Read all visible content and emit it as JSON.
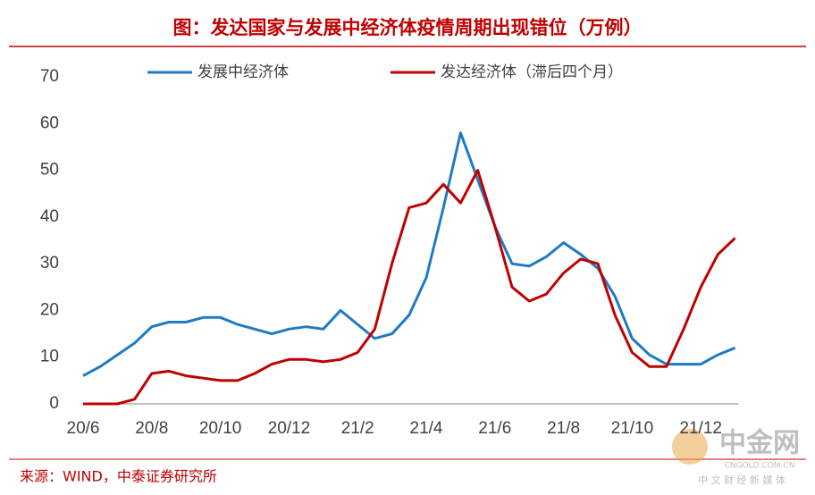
{
  "chart_data": {
    "type": "line",
    "title": "图：发达国家与发展中经济体疫情周期出现错位（万例）",
    "source": "来源：WIND，中泰证券研究所",
    "watermark": {
      "logo": "中金网",
      "site": "CNGOLD.COM.CN",
      "slogan": "中 文 财 经 新 媒 体"
    },
    "categories": [
      "20/6",
      null,
      null,
      null,
      "20/8",
      null,
      null,
      null,
      "20/10",
      null,
      null,
      null,
      "20/12",
      null,
      null,
      null,
      "21/2",
      null,
      null,
      null,
      "21/4",
      null,
      null,
      null,
      "21/6",
      null,
      null,
      null,
      "21/8",
      null,
      null,
      null,
      "21/10",
      null,
      null,
      null,
      "21/12",
      null,
      null
    ],
    "series": [
      {
        "name": "发展中经济体",
        "color": "#1f7ac4",
        "values": [
          6,
          8,
          10.5,
          13,
          16.5,
          17.5,
          17.5,
          18.5,
          18.5,
          17,
          16,
          15,
          16,
          16.5,
          16,
          20,
          17,
          14,
          15,
          19,
          27,
          42,
          58,
          48,
          38,
          30,
          29.5,
          31.5,
          34.5,
          32,
          29,
          23,
          14,
          10.5,
          8.5,
          8.5,
          8.5,
          10.5,
          12
        ]
      },
      {
        "name": "发达经济体（滞后四个月）",
        "color": "#c00000",
        "values": [
          0,
          0,
          0,
          1,
          6.5,
          7,
          6,
          5.5,
          5,
          5,
          6.5,
          8.5,
          9.5,
          9.5,
          9,
          9.5,
          11,
          16,
          30,
          42,
          43,
          47,
          43,
          50,
          38,
          25,
          22,
          23.5,
          28,
          31,
          30,
          19,
          11,
          8,
          8,
          16,
          25,
          32,
          35.5
        ]
      }
    ],
    "ylim": [
      0,
      70
    ],
    "yticks": [
      0,
      10,
      20,
      30,
      40,
      50,
      60,
      70
    ],
    "legend": "top",
    "grid": false
  }
}
